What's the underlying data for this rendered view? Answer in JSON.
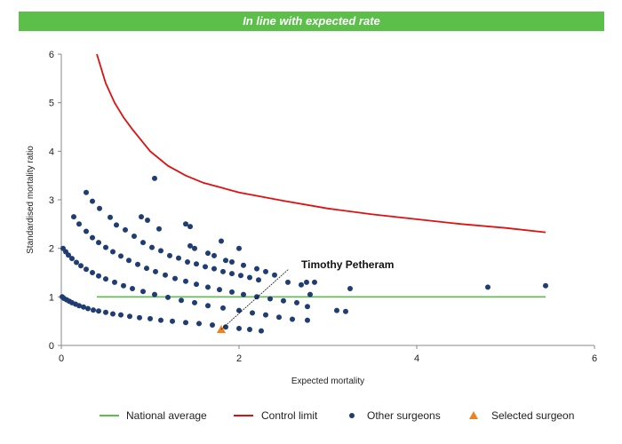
{
  "banner": {
    "text": "In line with expected rate",
    "color": "#5cbf4a"
  },
  "chart_data": {
    "type": "scatter",
    "title": "In line with expected rate",
    "xlabel": "Expected mortality",
    "ylabel": "Standardised mortality ratio",
    "xlim": [
      0,
      6
    ],
    "ylim": [
      0,
      6
    ],
    "xticks": [
      0,
      2,
      4,
      6
    ],
    "yticks": [
      0,
      1,
      2,
      3,
      4,
      5,
      6
    ],
    "grid": false,
    "legend_position": "bottom",
    "national_average": {
      "name": "National average",
      "color": "#5cbf4a",
      "y": 1,
      "x_range": [
        0.4,
        5.45
      ]
    },
    "control_limit": {
      "name": "Control limit",
      "color": "#e01010",
      "points": [
        [
          0.4,
          6.0
        ],
        [
          0.5,
          5.4
        ],
        [
          0.6,
          5.0
        ],
        [
          0.7,
          4.7
        ],
        [
          0.8,
          4.45
        ],
        [
          1.0,
          4.0
        ],
        [
          1.2,
          3.7
        ],
        [
          1.4,
          3.5
        ],
        [
          1.6,
          3.35
        ],
        [
          1.8,
          3.25
        ],
        [
          2.0,
          3.15
        ],
        [
          2.5,
          2.98
        ],
        [
          3.0,
          2.82
        ],
        [
          3.5,
          2.7
        ],
        [
          4.0,
          2.6
        ],
        [
          4.5,
          2.5
        ],
        [
          5.0,
          2.42
        ],
        [
          5.45,
          2.33
        ]
      ]
    },
    "other_surgeons": {
      "name": "Other surgeons",
      "color": "#1f3c73",
      "points": [
        [
          0.01,
          1.0
        ],
        [
          0.03,
          0.97
        ],
        [
          0.06,
          0.94
        ],
        [
          0.09,
          0.91
        ],
        [
          0.12,
          0.88
        ],
        [
          0.16,
          0.85
        ],
        [
          0.2,
          0.82
        ],
        [
          0.25,
          0.79
        ],
        [
          0.3,
          0.76
        ],
        [
          0.36,
          0.73
        ],
        [
          0.42,
          0.71
        ],
        [
          0.5,
          0.68
        ],
        [
          0.58,
          0.65
        ],
        [
          0.67,
          0.63
        ],
        [
          0.77,
          0.6
        ],
        [
          0.88,
          0.57
        ],
        [
          1.0,
          0.55
        ],
        [
          1.12,
          0.52
        ],
        [
          1.25,
          0.5
        ],
        [
          1.4,
          0.47
        ],
        [
          1.55,
          0.45
        ],
        [
          1.7,
          0.42
        ],
        [
          1.85,
          0.38
        ],
        [
          2.0,
          0.35
        ],
        [
          2.12,
          0.33
        ],
        [
          2.25,
          0.3
        ],
        [
          0.02,
          2.0
        ],
        [
          0.05,
          1.93
        ],
        [
          0.08,
          1.86
        ],
        [
          0.12,
          1.79
        ],
        [
          0.17,
          1.71
        ],
        [
          0.22,
          1.64
        ],
        [
          0.28,
          1.57
        ],
        [
          0.35,
          1.5
        ],
        [
          0.42,
          1.43
        ],
        [
          0.5,
          1.37
        ],
        [
          0.6,
          1.3
        ],
        [
          0.7,
          1.23
        ],
        [
          0.8,
          1.17
        ],
        [
          0.92,
          1.11
        ],
        [
          1.05,
          1.05
        ],
        [
          1.2,
          0.99
        ],
        [
          1.35,
          0.93
        ],
        [
          1.5,
          0.88
        ],
        [
          1.65,
          0.82
        ],
        [
          1.82,
          0.77
        ],
        [
          2.0,
          0.72
        ],
        [
          2.15,
          0.67
        ],
        [
          2.3,
          0.63
        ],
        [
          2.45,
          0.58
        ],
        [
          2.6,
          0.54
        ],
        [
          2.77,
          0.52
        ],
        [
          0.14,
          2.65
        ],
        [
          0.2,
          2.5
        ],
        [
          0.28,
          2.35
        ],
        [
          0.35,
          2.22
        ],
        [
          0.42,
          2.12
        ],
        [
          0.5,
          2.02
        ],
        [
          0.58,
          1.93
        ],
        [
          0.67,
          1.84
        ],
        [
          0.76,
          1.75
        ],
        [
          0.86,
          1.67
        ],
        [
          0.96,
          1.59
        ],
        [
          1.06,
          1.52
        ],
        [
          1.17,
          1.45
        ],
        [
          1.28,
          1.38
        ],
        [
          1.4,
          1.32
        ],
        [
          1.52,
          1.26
        ],
        [
          1.65,
          1.2
        ],
        [
          1.78,
          1.15
        ],
        [
          1.92,
          1.1
        ],
        [
          2.05,
          1.05
        ],
        [
          2.2,
          1.0
        ],
        [
          2.35,
          0.96
        ],
        [
          2.5,
          0.92
        ],
        [
          2.65,
          0.88
        ],
        [
          2.77,
          0.8
        ],
        [
          0.28,
          3.15
        ],
        [
          0.35,
          2.97
        ],
        [
          0.43,
          2.82
        ],
        [
          0.55,
          2.64
        ],
        [
          0.62,
          2.48
        ],
        [
          0.72,
          2.38
        ],
        [
          0.82,
          2.25
        ],
        [
          0.92,
          2.12
        ],
        [
          1.02,
          2.02
        ],
        [
          1.12,
          1.95
        ],
        [
          1.22,
          1.85
        ],
        [
          1.32,
          1.8
        ],
        [
          1.42,
          1.72
        ],
        [
          1.52,
          1.68
        ],
        [
          1.62,
          1.62
        ],
        [
          1.72,
          1.58
        ],
        [
          1.82,
          1.52
        ],
        [
          1.92,
          1.48
        ],
        [
          2.02,
          1.44
        ],
        [
          2.12,
          1.4
        ],
        [
          2.22,
          1.35
        ],
        [
          0.9,
          2.65
        ],
        [
          0.97,
          2.58
        ],
        [
          1.1,
          2.4
        ],
        [
          1.4,
          2.5
        ],
        [
          1.45,
          2.45
        ],
        [
          1.45,
          2.05
        ],
        [
          1.5,
          2.0
        ],
        [
          1.65,
          1.9
        ],
        [
          1.72,
          1.85
        ],
        [
          1.8,
          2.15
        ],
        [
          1.85,
          1.75
        ],
        [
          1.92,
          1.72
        ],
        [
          2.0,
          2.0
        ],
        [
          2.05,
          1.65
        ],
        [
          2.2,
          1.58
        ],
        [
          2.3,
          1.52
        ],
        [
          2.4,
          1.45
        ],
        [
          2.55,
          1.3
        ],
        [
          2.7,
          1.25
        ],
        [
          2.76,
          1.3
        ],
        [
          2.85,
          1.3
        ],
        [
          2.8,
          1.05
        ],
        [
          1.05,
          3.44
        ],
        [
          3.25,
          1.17
        ],
        [
          3.1,
          0.72
        ],
        [
          3.2,
          0.7
        ],
        [
          4.8,
          1.2
        ],
        [
          5.45,
          1.23
        ]
      ]
    },
    "selected_surgeon": {
      "name": "Selected surgeon",
      "color": "#f08020",
      "x": 1.8,
      "y": 0.33,
      "label": "Timothy Petheram"
    }
  }
}
